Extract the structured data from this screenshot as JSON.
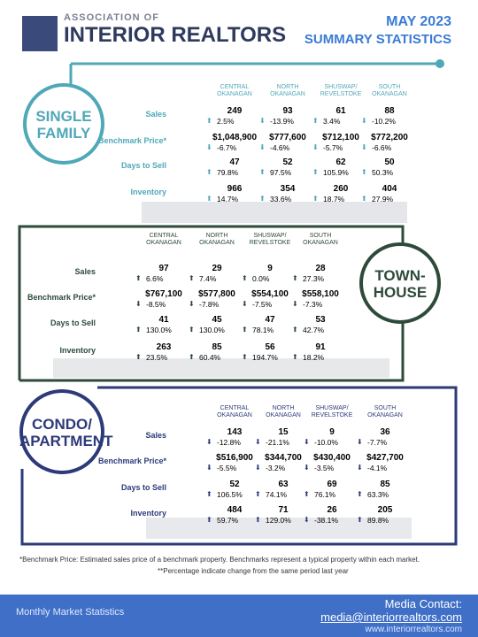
{
  "header": {
    "org_line1": "ASSOCIATION OF",
    "org_line2": "INTERIOR REALTORS",
    "title": "MAY 2023",
    "subtitle": "SUMMARY STATISTICS"
  },
  "row_labels": [
    "Sales",
    "Benchmark Price*",
    "Days to Sell",
    "Inventory"
  ],
  "regions": [
    [
      "CENTRAL",
      "OKANAGAN"
    ],
    [
      "NORTH",
      "OKANAGAN"
    ],
    [
      "SHUSWAP/",
      "REVELSTOKE"
    ],
    [
      "SOUTH",
      "OKANAGAN"
    ]
  ],
  "sections": [
    {
      "title": [
        "SINGLE",
        "FAMILY"
      ],
      "rows": [
        [
          [
            "249",
            "2.5%"
          ],
          [
            "93",
            "-13.9%"
          ],
          [
            "61",
            "3.4%"
          ],
          [
            "88",
            "-10.2%"
          ]
        ],
        [
          [
            "$1,048,900",
            "-6.7%"
          ],
          [
            "$777,600",
            "-4.6%"
          ],
          [
            "$712,100",
            "-5.7%"
          ],
          [
            "$772,200",
            "-6.6%"
          ]
        ],
        [
          [
            "47",
            "79.8%"
          ],
          [
            "52",
            "97.5%"
          ],
          [
            "62",
            "105.9%"
          ],
          [
            "50",
            "50.3%"
          ]
        ],
        [
          [
            "966",
            "14.7%"
          ],
          [
            "354",
            "33.6%"
          ],
          [
            "260",
            "18.7%"
          ],
          [
            "404",
            "27.9%"
          ]
        ]
      ]
    },
    {
      "title": [
        "TOWN-",
        "HOUSE"
      ],
      "rows": [
        [
          [
            "97",
            "6.6%"
          ],
          [
            "29",
            "7.4%"
          ],
          [
            "9",
            "0.0%"
          ],
          [
            "28",
            "27.3%"
          ]
        ],
        [
          [
            "$767,100",
            "-8.5%"
          ],
          [
            "$577,800",
            "-7.8%"
          ],
          [
            "$554,100",
            "-7.5%"
          ],
          [
            "$558,100",
            "-7.3%"
          ]
        ],
        [
          [
            "41",
            "130.0%"
          ],
          [
            "45",
            "130.0%"
          ],
          [
            "47",
            "78.1%"
          ],
          [
            "53",
            "42.7%"
          ]
        ],
        [
          [
            "263",
            "23.5%"
          ],
          [
            "85",
            "60.4%"
          ],
          [
            "56",
            "194.7%"
          ],
          [
            "91",
            "18.2%"
          ]
        ]
      ]
    },
    {
      "title": [
        "CONDO/",
        "APARTMENT"
      ],
      "rows": [
        [
          [
            "143",
            "-12.8%"
          ],
          [
            "15",
            "-21.1%"
          ],
          [
            "9",
            "-10.0%"
          ],
          [
            "36",
            "-7.7%"
          ]
        ],
        [
          [
            "$516,900",
            "-5.5%"
          ],
          [
            "$344,700",
            "-3.2%"
          ],
          [
            "$430,400",
            "-3.5%"
          ],
          [
            "$427,700",
            "-4.1%"
          ]
        ],
        [
          [
            "52",
            "106.5%"
          ],
          [
            "63",
            "74.1%"
          ],
          [
            "69",
            "76.1%"
          ],
          [
            "85",
            "63.3%"
          ]
        ],
        [
          [
            "484",
            "59.7%"
          ],
          [
            "71",
            "129.0%"
          ],
          [
            "26",
            "-38.1%"
          ],
          [
            "205",
            "89.8%"
          ]
        ]
      ]
    }
  ],
  "footnotes": [
    "*Benchmark Price: Estimated sales price of a benchmark property. Benchmarks represent a typical property within each market.",
    "**Percentage indicate change from the same period last year"
  ],
  "footer": {
    "left": "Monthly Market Statistics",
    "contact_label": "Media Contact:",
    "email": "media@interiorrealtors.com",
    "website": "www.interiorrealtors.com"
  }
}
